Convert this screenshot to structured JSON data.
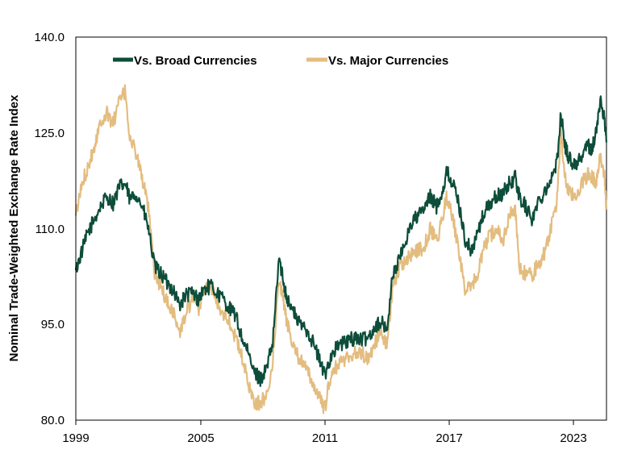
{
  "chart_data": {
    "type": "line",
    "ylabel": "Nominal Trade-Weighted Exchange Rate Index",
    "xlabel": "",
    "title": "",
    "ylim": [
      80.0,
      140.0
    ],
    "yticks": [
      "80.0",
      "95.0",
      "110.0",
      "125.0",
      "140.0"
    ],
    "xlim": [
      1999,
      2024.6
    ],
    "xticks": [
      "1999",
      "2005",
      "2011",
      "2017",
      "2023"
    ],
    "grid": false,
    "legend_position": "top-left",
    "series": [
      {
        "name": "Vs. Broad Currencies",
        "color": "#0d4d3a",
        "x": [
          1999.0,
          1999.3,
          1999.6,
          1999.9,
          2000.2,
          2000.5,
          2000.8,
          2001.1,
          2001.4,
          2001.6,
          2001.9,
          2002.2,
          2002.5,
          2002.8,
          2003.1,
          2003.4,
          2003.7,
          2004.0,
          2004.3,
          2004.6,
          2004.9,
          2005.2,
          2005.5,
          2005.8,
          2006.1,
          2006.4,
          2006.7,
          2007.0,
          2007.3,
          2007.6,
          2007.9,
          2008.2,
          2008.5,
          2008.8,
          2009.0,
          2009.2,
          2009.5,
          2009.8,
          2010.1,
          2010.4,
          2010.7,
          2011.0,
          2011.3,
          2011.6,
          2011.9,
          2012.2,
          2012.5,
          2012.8,
          2013.1,
          2013.4,
          2013.7,
          2014.0,
          2014.3,
          2014.6,
          2014.9,
          2015.2,
          2015.5,
          2015.8,
          2016.1,
          2016.4,
          2016.7,
          2016.9,
          2017.2,
          2017.5,
          2017.8,
          2018.1,
          2018.4,
          2018.7,
          2019.0,
          2019.3,
          2019.6,
          2019.9,
          2020.2,
          2020.4,
          2020.7,
          2021.0,
          2021.3,
          2021.6,
          2021.9,
          2022.2,
          2022.4,
          2022.6,
          2022.8,
          2023.1,
          2023.4,
          2023.7,
          2023.9,
          2024.1,
          2024.3,
          2024.5,
          2024.6
        ],
        "values": [
          103.5,
          106.5,
          109.5,
          111.5,
          113.5,
          115.0,
          114.0,
          116.5,
          117.0,
          114.5,
          115.5,
          113.5,
          110.0,
          104.0,
          103.0,
          101.5,
          100.5,
          98.0,
          99.5,
          100.0,
          99.0,
          100.5,
          101.0,
          100.0,
          99.0,
          97.5,
          96.5,
          93.0,
          90.5,
          87.5,
          86.5,
          88.0,
          92.0,
          105.5,
          102.0,
          99.0,
          97.0,
          95.0,
          94.5,
          92.5,
          90.0,
          87.0,
          90.0,
          91.5,
          92.0,
          92.5,
          93.0,
          92.5,
          93.0,
          94.5,
          95.5,
          94.0,
          103.0,
          105.0,
          108.0,
          111.0,
          112.0,
          113.0,
          115.0,
          113.5,
          116.0,
          119.0,
          117.0,
          113.5,
          108.0,
          106.5,
          109.5,
          112.5,
          114.0,
          115.0,
          115.5,
          117.0,
          118.0,
          115.0,
          113.5,
          111.5,
          114.0,
          116.0,
          117.5,
          120.0,
          128.0,
          123.0,
          121.0,
          120.0,
          121.5,
          123.0,
          122.5,
          125.0,
          130.0,
          127.5,
          123.5
        ]
      },
      {
        "name": "Vs. Major Currencies",
        "color": "#e3bd80",
        "x": [
          1999.0,
          1999.3,
          1999.6,
          1999.9,
          2000.2,
          2000.5,
          2000.8,
          2001.1,
          2001.4,
          2001.6,
          2001.9,
          2002.2,
          2002.5,
          2002.8,
          2003.1,
          2003.4,
          2003.7,
          2004.0,
          2004.3,
          2004.6,
          2004.9,
          2005.2,
          2005.5,
          2005.8,
          2006.1,
          2006.4,
          2006.7,
          2007.0,
          2007.3,
          2007.6,
          2007.9,
          2008.2,
          2008.5,
          2008.8,
          2009.0,
          2009.2,
          2009.5,
          2009.8,
          2010.1,
          2010.4,
          2010.7,
          2011.0,
          2011.3,
          2011.6,
          2011.9,
          2012.2,
          2012.5,
          2012.8,
          2013.1,
          2013.4,
          2013.7,
          2014.0,
          2014.3,
          2014.6,
          2014.9,
          2015.2,
          2015.5,
          2015.8,
          2016.1,
          2016.4,
          2016.7,
          2016.9,
          2017.2,
          2017.5,
          2017.8,
          2018.1,
          2018.4,
          2018.7,
          2019.0,
          2019.3,
          2019.6,
          2019.9,
          2020.2,
          2020.4,
          2020.7,
          2021.0,
          2021.3,
          2021.6,
          2021.9,
          2022.2,
          2022.4,
          2022.6,
          2022.8,
          2023.1,
          2023.4,
          2023.7,
          2023.9,
          2024.1,
          2024.3,
          2024.5,
          2024.6
        ],
        "values": [
          112.0,
          117.0,
          120.0,
          123.0,
          127.0,
          128.0,
          126.5,
          130.0,
          131.5,
          124.0,
          122.0,
          118.0,
          113.0,
          103.0,
          101.0,
          98.5,
          97.0,
          93.5,
          96.5,
          99.0,
          97.0,
          100.5,
          101.0,
          98.5,
          97.0,
          95.5,
          93.0,
          90.0,
          86.0,
          83.0,
          82.5,
          84.0,
          89.0,
          102.5,
          99.0,
          95.0,
          92.0,
          89.5,
          88.0,
          86.0,
          84.0,
          81.5,
          87.0,
          88.5,
          89.5,
          90.0,
          90.5,
          90.5,
          89.5,
          92.0,
          93.5,
          92.0,
          101.0,
          104.0,
          105.0,
          106.0,
          106.5,
          107.0,
          110.0,
          108.0,
          112.0,
          115.0,
          111.5,
          106.0,
          100.0,
          101.0,
          103.0,
          107.0,
          109.0,
          110.0,
          108.0,
          112.0,
          113.0,
          103.5,
          103.0,
          102.5,
          104.5,
          106.0,
          110.0,
          114.0,
          125.0,
          118.0,
          115.5,
          115.0,
          117.0,
          118.5,
          118.0,
          117.5,
          121.0,
          118.5,
          113.0
        ]
      }
    ]
  }
}
